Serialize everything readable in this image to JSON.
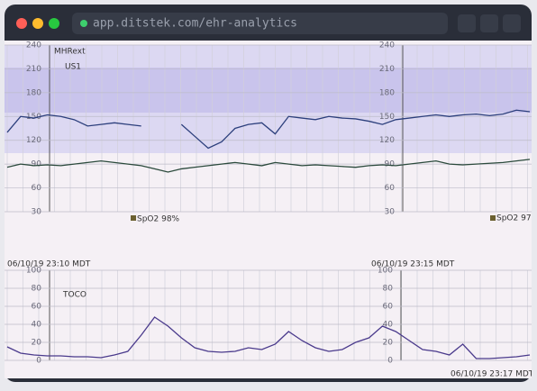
{
  "browser": {
    "url": "app.ditstek.com/ehr-analytics"
  },
  "chart_data": [
    {
      "type": "line",
      "annotations": [
        "MHRext",
        "US1",
        "SpO2 98%",
        "SpO2 97"
      ],
      "ylim": [
        30,
        240
      ],
      "yticks": [
        30,
        60,
        90,
        120,
        150,
        180,
        210,
        240
      ],
      "grid": true,
      "series": [
        {
          "color": "#2c3f7c",
          "values": [
            130,
            150,
            148,
            152,
            150,
            146,
            138,
            140,
            142,
            140,
            138,
            null,
            null,
            140,
            125,
            110,
            118,
            135,
            140,
            142,
            128,
            150,
            148,
            146,
            150,
            148,
            147,
            144,
            140,
            146,
            148,
            150,
            152,
            150,
            152,
            153,
            151,
            153,
            158,
            156
          ]
        },
        {
          "color": "#2b4a3c",
          "values": [
            86,
            90,
            88,
            89,
            88,
            90,
            92,
            94,
            92,
            90,
            88,
            84,
            80,
            84,
            86,
            88,
            90,
            92,
            90,
            88,
            92,
            90,
            88,
            89,
            88,
            87,
            86,
            88,
            89,
            88,
            90,
            92,
            94,
            90,
            89,
            90,
            91,
            92,
            94,
            96
          ]
        }
      ]
    },
    {
      "type": "line",
      "annotations": [
        "06/10/19 23:10 MDT",
        "06/10/19 23:15 MDT",
        "TOCO",
        "06/10/19 23:17 MDT"
      ],
      "ylim": [
        0,
        100
      ],
      "yticks": [
        0,
        20,
        40,
        60,
        80,
        100
      ],
      "grid": true,
      "series": [
        {
          "color": "#4a3a8c",
          "values": [
            15,
            8,
            6,
            5,
            5,
            4,
            4,
            3,
            6,
            10,
            28,
            48,
            38,
            25,
            14,
            10,
            9,
            10,
            14,
            12,
            18,
            32,
            22,
            14,
            10,
            12,
            20,
            25,
            38,
            32,
            22,
            12,
            10,
            6,
            18,
            2,
            2,
            3,
            4,
            6
          ]
        }
      ]
    }
  ]
}
